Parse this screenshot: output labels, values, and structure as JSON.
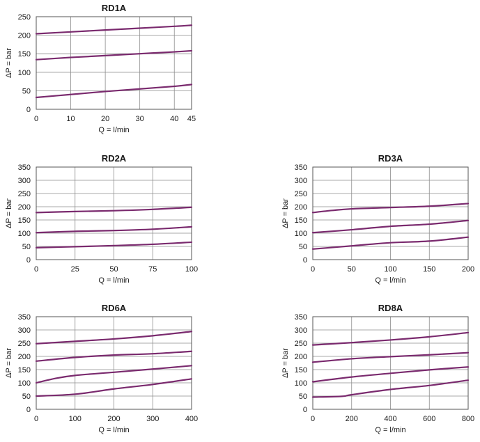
{
  "colors": {
    "curve": "#7a2a6e",
    "grid": "#8c8c8c",
    "frame": "#555555"
  },
  "chart_data": [
    {
      "type": "line",
      "title": "RD1A",
      "xlabel": "Q = l/min",
      "ylabel": "ΔP = bar",
      "xlim": [
        0,
        45
      ],
      "ylim": [
        0,
        250
      ],
      "xticks": [
        0,
        10,
        20,
        30,
        40,
        45
      ],
      "xtick_labels": [
        "0",
        "10",
        "20",
        "30",
        "40",
        "45"
      ],
      "yticks": [
        0,
        50,
        100,
        150,
        200,
        250
      ],
      "ytick_labels": [
        "0",
        "50",
        "100",
        "150",
        "200",
        "250"
      ],
      "grid": true,
      "series": [
        {
          "x": [
            0,
            10,
            20,
            30,
            40,
            45
          ],
          "values": [
            204,
            209,
            214,
            219,
            224,
            227
          ]
        },
        {
          "x": [
            0,
            10,
            20,
            30,
            40,
            45
          ],
          "values": [
            134,
            140,
            145,
            150,
            155,
            158
          ]
        },
        {
          "x": [
            0,
            10,
            20,
            30,
            40,
            45
          ],
          "values": [
            32,
            40,
            48,
            55,
            62,
            67
          ]
        }
      ]
    },
    {
      "type": "line",
      "title": "RD2A",
      "xlabel": "Q = l/min",
      "ylabel": "ΔP = bar",
      "xlim": [
        0,
        100
      ],
      "ylim": [
        0,
        350
      ],
      "xticks": [
        0,
        25,
        50,
        75,
        100
      ],
      "xtick_labels": [
        "0",
        "25",
        "50",
        "75",
        "100"
      ],
      "yticks": [
        0,
        50,
        100,
        150,
        200,
        250,
        300,
        350
      ],
      "ytick_labels": [
        "0",
        "50",
        "100",
        "150",
        "200",
        "250",
        "300",
        "350"
      ],
      "grid": true,
      "series": [
        {
          "x": [
            0,
            25,
            50,
            75,
            100
          ],
          "values": [
            178,
            182,
            185,
            190,
            198
          ]
        },
        {
          "x": [
            0,
            25,
            50,
            75,
            100
          ],
          "values": [
            102,
            107,
            110,
            115,
            124
          ]
        },
        {
          "x": [
            0,
            25,
            50,
            75,
            100
          ],
          "values": [
            45,
            49,
            53,
            58,
            66
          ]
        }
      ]
    },
    {
      "type": "line",
      "title": "RD3A",
      "xlabel": "Q = l/min",
      "ylabel": "ΔP = bar",
      "xlim": [
        0,
        200
      ],
      "ylim": [
        0,
        350
      ],
      "xticks": [
        0,
        50,
        100,
        150,
        200
      ],
      "xtick_labels": [
        "0",
        "50",
        "100",
        "150",
        "200"
      ],
      "yticks": [
        0,
        50,
        100,
        150,
        200,
        250,
        300,
        350
      ],
      "ytick_labels": [
        "0",
        "50",
        "100",
        "150",
        "200",
        "250",
        "300",
        "350"
      ],
      "grid": true,
      "series": [
        {
          "x": [
            0,
            25,
            50,
            100,
            150,
            200
          ],
          "values": [
            178,
            186,
            192,
            197,
            202,
            212
          ]
        },
        {
          "x": [
            0,
            50,
            100,
            150,
            200
          ],
          "values": [
            102,
            113,
            126,
            134,
            148
          ]
        },
        {
          "x": [
            0,
            50,
            100,
            150,
            200
          ],
          "values": [
            40,
            52,
            64,
            70,
            85
          ]
        }
      ]
    },
    {
      "type": "line",
      "title": "RD6A",
      "xlabel": "Q = l/min",
      "ylabel": "ΔP = bar",
      "xlim": [
        0,
        400
      ],
      "ylim": [
        0,
        350
      ],
      "xticks": [
        0,
        100,
        200,
        300,
        400
      ],
      "xtick_labels": [
        "0",
        "100",
        "200",
        "300",
        "400"
      ],
      "yticks": [
        0,
        50,
        100,
        150,
        200,
        250,
        300,
        350
      ],
      "ytick_labels": [
        "0",
        "50",
        "100",
        "150",
        "200",
        "250",
        "300",
        "350"
      ],
      "grid": true,
      "series": [
        {
          "x": [
            0,
            100,
            200,
            300,
            400
          ],
          "values": [
            248,
            257,
            266,
            278,
            294
          ]
        },
        {
          "x": [
            0,
            100,
            200,
            300,
            400
          ],
          "values": [
            182,
            196,
            205,
            210,
            219
          ]
        },
        {
          "x": [
            0,
            50,
            100,
            200,
            300,
            400
          ],
          "values": [
            100,
            117,
            128,
            140,
            152,
            165
          ]
        },
        {
          "x": [
            0,
            100,
            200,
            300,
            400
          ],
          "values": [
            50,
            57,
            77,
            94,
            115
          ]
        }
      ]
    },
    {
      "type": "line",
      "title": "RD8A",
      "xlabel": "Q = l/min",
      "ylabel": "ΔP = bar",
      "xlim": [
        0,
        800
      ],
      "ylim": [
        0,
        350
      ],
      "xticks": [
        0,
        200,
        400,
        600,
        800
      ],
      "xtick_labels": [
        "0",
        "200",
        "400",
        "600",
        "800"
      ],
      "yticks": [
        0,
        50,
        100,
        150,
        200,
        250,
        300,
        350
      ],
      "ytick_labels": [
        "0",
        "50",
        "100",
        "150",
        "200",
        "250",
        "300",
        "350"
      ],
      "grid": true,
      "series": [
        {
          "x": [
            0,
            200,
            400,
            600,
            800
          ],
          "values": [
            243,
            252,
            262,
            274,
            290
          ]
        },
        {
          "x": [
            0,
            200,
            400,
            600,
            800
          ],
          "values": [
            178,
            191,
            199,
            206,
            214
          ]
        },
        {
          "x": [
            0,
            200,
            400,
            600,
            800
          ],
          "values": [
            104,
            122,
            136,
            149,
            160
          ]
        },
        {
          "x": [
            0,
            150,
            200,
            400,
            600,
            800
          ],
          "values": [
            46,
            49,
            55,
            75,
            90,
            110
          ]
        }
      ]
    }
  ]
}
